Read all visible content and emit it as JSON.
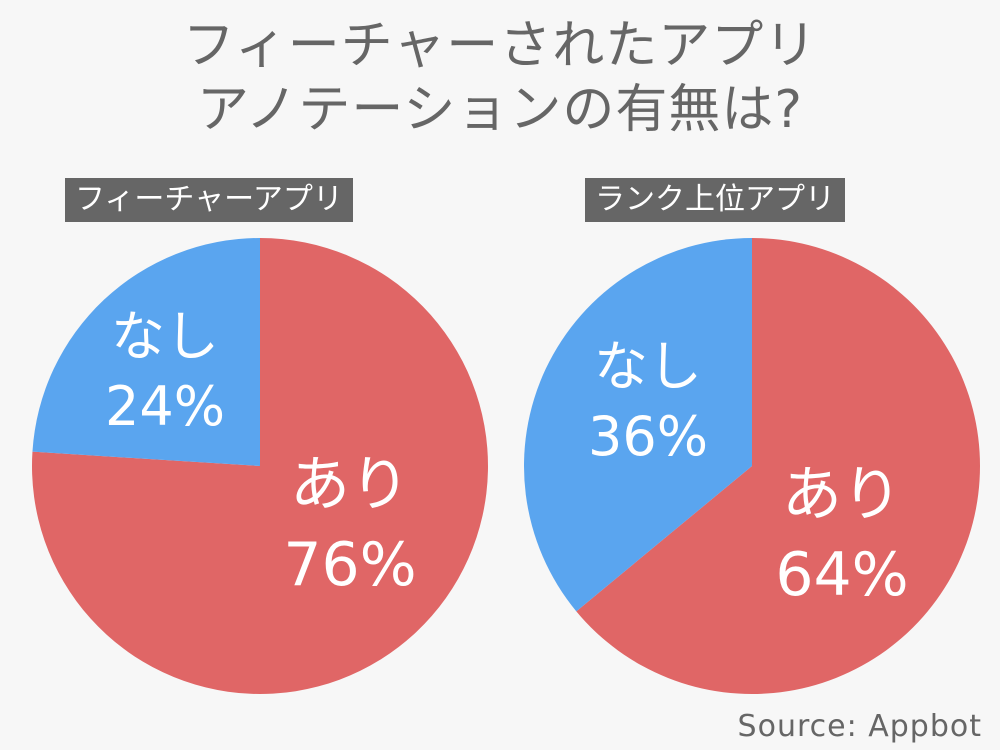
{
  "title": {
    "line1": "フィーチャーされたアプリ",
    "line2": "アノテーションの有無は?"
  },
  "source": "Source: Appbot",
  "colors": {
    "yes": "#e06666",
    "no": "#5aa5ef",
    "label_bg": "#666666",
    "text": "#666666"
  },
  "chart_data": [
    {
      "type": "pie",
      "title": "フィーチャーアプリ",
      "slices": [
        {
          "label": "あり",
          "value": 76,
          "value_label": "76%",
          "color": "#e06666"
        },
        {
          "label": "なし",
          "value": 24,
          "value_label": "24%",
          "color": "#5aa5ef"
        }
      ]
    },
    {
      "type": "pie",
      "title": "ランク上位アプリ",
      "slices": [
        {
          "label": "あり",
          "value": 64,
          "value_label": "64%",
          "color": "#e06666"
        },
        {
          "label": "なし",
          "value": 36,
          "value_label": "36%",
          "color": "#5aa5ef"
        }
      ]
    }
  ]
}
